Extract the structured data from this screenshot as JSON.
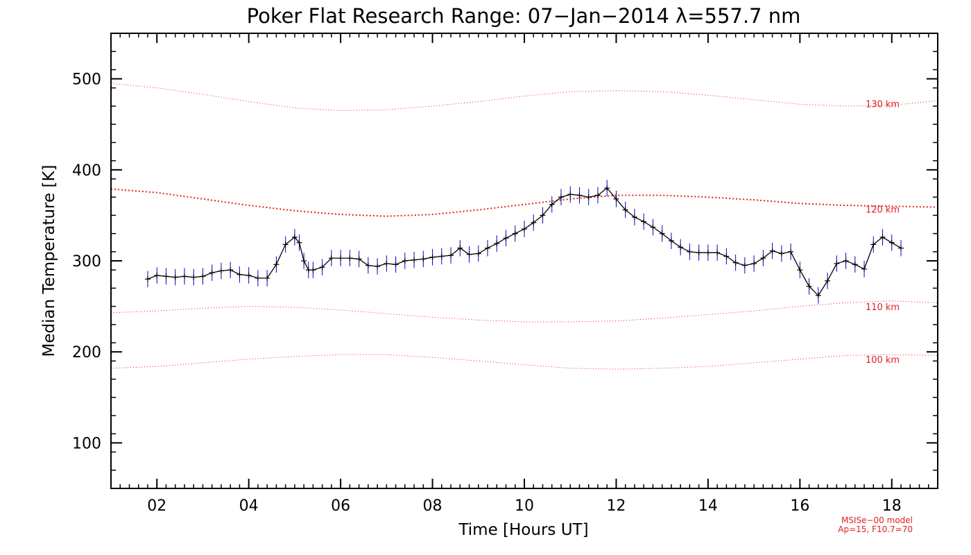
{
  "chart_data": {
    "type": "line",
    "title": "Poker Flat Research Range: 07−Jan−2014 λ=557.7 nm",
    "xlabel": "Time [Hours UT]",
    "ylabel": "Median Temperature [K]",
    "xlim": [
      1,
      19
    ],
    "ylim": [
      50,
      550
    ],
    "x_ticks": [
      2,
      4,
      6,
      8,
      10,
      12,
      14,
      16,
      18
    ],
    "x_tick_labels": [
      "02",
      "04",
      "06",
      "08",
      "10",
      "12",
      "14",
      "16",
      "18"
    ],
    "y_ticks": [
      100,
      200,
      300,
      400,
      500
    ],
    "y_tick_labels": [
      "100",
      "200",
      "300",
      "400",
      "500"
    ],
    "grid": false,
    "colors": {
      "data_line": "#000000",
      "error_bars": "#0000cc",
      "model_lines": "#e02020"
    },
    "series": [
      {
        "role": "measurement",
        "error_bar": 9,
        "x": [
          1.8,
          2.0,
          2.2,
          2.4,
          2.6,
          2.8,
          3.0,
          3.2,
          3.4,
          3.6,
          3.8,
          4.0,
          4.2,
          4.4,
          4.6,
          4.8,
          5.0,
          5.1,
          5.2,
          5.3,
          5.4,
          5.6,
          5.8,
          6.0,
          6.2,
          6.4,
          6.6,
          6.8,
          7.0,
          7.2,
          7.4,
          7.6,
          7.8,
          8.0,
          8.2,
          8.4,
          8.6,
          8.8,
          9.0,
          9.2,
          9.4,
          9.6,
          9.8,
          10.0,
          10.2,
          10.4,
          10.6,
          10.8,
          11.0,
          11.2,
          11.4,
          11.6,
          11.8,
          12.0,
          12.2,
          12.4,
          12.6,
          12.8,
          13.0,
          13.2,
          13.4,
          13.6,
          13.8,
          14.0,
          14.2,
          14.4,
          14.6,
          14.8,
          15.0,
          15.2,
          15.4,
          15.6,
          15.8,
          16.0,
          16.2,
          16.4,
          16.6,
          16.8,
          17.0,
          17.2,
          17.4,
          17.6,
          17.8,
          18.0,
          18.2
        ],
        "y": [
          280,
          284,
          283,
          282,
          283,
          282,
          283,
          287,
          289,
          290,
          285,
          284,
          281,
          281,
          296,
          318,
          326,
          320,
          300,
          290,
          290,
          293,
          303,
          303,
          303,
          302,
          295,
          294,
          297,
          296,
          300,
          301,
          302,
          304,
          305,
          306,
          314,
          307,
          308,
          314,
          319,
          325,
          330,
          335,
          342,
          350,
          362,
          370,
          373,
          372,
          370,
          372,
          380,
          368,
          356,
          348,
          343,
          337,
          330,
          322,
          315,
          310,
          309,
          309,
          309,
          305,
          298,
          295,
          297,
          303,
          311,
          308,
          310,
          290,
          272,
          262,
          278,
          297,
          300,
          296,
          291,
          318,
          326,
          320,
          314
        ]
      },
      {
        "name": "130 km",
        "role": "model",
        "x": [
          1,
          2,
          3,
          4,
          5,
          6,
          7,
          8,
          9,
          10,
          11,
          12,
          13,
          14,
          15,
          16,
          17,
          18,
          19
        ],
        "y": [
          495,
          490,
          483,
          475,
          468,
          465,
          466,
          470,
          475,
          481,
          486,
          487,
          486,
          482,
          477,
          472,
          470,
          471,
          476
        ]
      },
      {
        "name": "120 km",
        "role": "model",
        "x": [
          1,
          2,
          3,
          4,
          5,
          6,
          7,
          8,
          9,
          10,
          11,
          12,
          13,
          14,
          15,
          16,
          17,
          18,
          19
        ],
        "y": [
          379,
          375,
          368,
          361,
          355,
          351,
          349,
          351,
          356,
          362,
          368,
          372,
          372,
          370,
          367,
          363,
          361,
          360,
          359
        ]
      },
      {
        "name": "110 km",
        "role": "model",
        "x": [
          1,
          2,
          3,
          4,
          5,
          6,
          7,
          8,
          9,
          10,
          11,
          12,
          13,
          14,
          15,
          16,
          17,
          18,
          19
        ],
        "y": [
          243,
          245,
          248,
          250,
          249,
          246,
          242,
          238,
          235,
          233,
          233,
          234,
          237,
          241,
          245,
          250,
          254,
          256,
          254
        ]
      },
      {
        "name": "100 km",
        "role": "model",
        "x": [
          1,
          2,
          3,
          4,
          5,
          6,
          7,
          8,
          9,
          10,
          11,
          12,
          13,
          14,
          15,
          16,
          17,
          18,
          19
        ],
        "y": [
          182,
          184,
          188,
          192,
          195,
          197,
          197,
          194,
          190,
          186,
          182,
          181,
          182,
          184,
          188,
          192,
          196,
          197,
          196
        ]
      }
    ],
    "model_labels": [
      {
        "text": "130 km",
        "x": 17.8,
        "y": 469
      },
      {
        "text": "120 km",
        "x": 17.8,
        "y": 353
      },
      {
        "text": "110 km",
        "x": 17.8,
        "y": 246
      },
      {
        "text": "100 km",
        "x": 17.8,
        "y": 188
      }
    ],
    "footnote_lines": [
      "MSISe−00 model",
      "Ap=15, F10.7=70"
    ]
  }
}
